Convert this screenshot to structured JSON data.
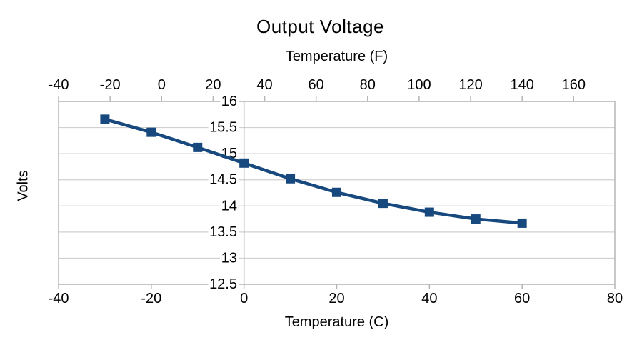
{
  "chart_data": {
    "type": "line",
    "title": "Output Voltage",
    "series": [
      {
        "name": "Output Voltage",
        "x": [
          -30,
          -20,
          -10,
          0,
          10,
          20,
          30,
          40,
          50,
          60
        ],
        "values": [
          15.66,
          15.41,
          15.12,
          14.82,
          14.52,
          14.26,
          14.05,
          13.88,
          13.75,
          13.67
        ],
        "color": "#17497E",
        "marker": "square",
        "marker_size": 13,
        "line_width": 4.5
      }
    ],
    "x_axis_bottom": {
      "label": "Temperature (C)",
      "range": [
        -40,
        80
      ],
      "ticks": [
        -40,
        -20,
        0,
        20,
        40,
        60,
        80
      ]
    },
    "x_axis_top": {
      "label": "Temperature (F)",
      "ticks": [
        -40,
        -20,
        0,
        20,
        40,
        60,
        80,
        100,
        120,
        140,
        160
      ],
      "alignment": "F = C*1.8+32"
    },
    "y_axis": {
      "label": "Volts",
      "range": [
        12.5,
        16
      ],
      "ticks": [
        16,
        15.5,
        15,
        14.5,
        14,
        13.5,
        13,
        12.5
      ],
      "crosses_x_at": 0
    },
    "grid": {
      "horizontal": true,
      "vertical": false,
      "color": "#d0d0d0"
    },
    "axis_line_color": "#b5b5b5",
    "text_color": "#000000",
    "background": "#ffffff",
    "legend": "none"
  }
}
